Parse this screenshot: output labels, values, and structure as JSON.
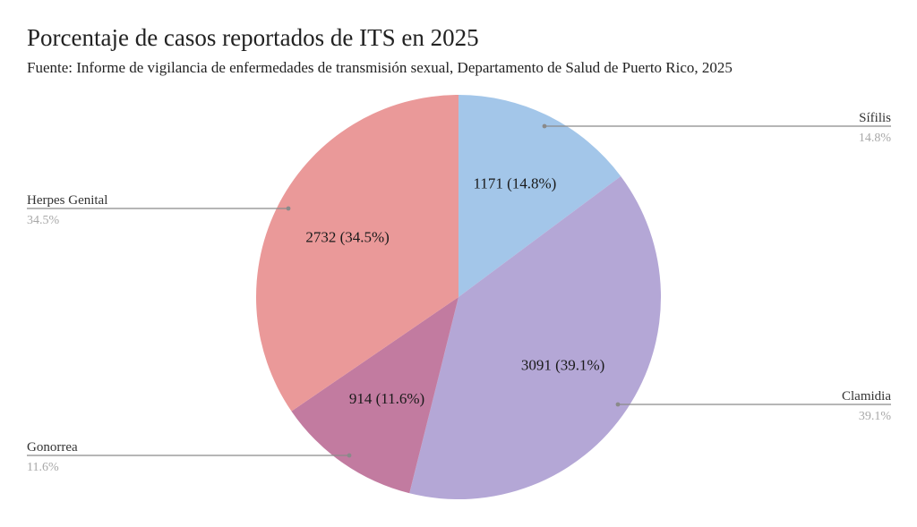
{
  "title": "Porcentaje de casos reportados de ITS en 2025",
  "subtitle": "Fuente: Informe de vigilancia de enfermedades de transmisión sexual, Departamento de Salud de Puerto Rico, 2025",
  "chart_data": {
    "type": "pie",
    "title": "Porcentaje de casos reportados de ITS en 2025",
    "start": "12 o'clock",
    "direction": "clockwise",
    "slices": [
      {
        "name": "Sífilis",
        "value": 1171,
        "percent_label": "14.8%",
        "inner_label": "1171 (14.8%)",
        "color": "#a3c6e9",
        "legend_side": "right"
      },
      {
        "name": "Clamidia",
        "value": 3091,
        "percent_label": "39.1%",
        "inner_label": "3091 (39.1%)",
        "color": "#b4a7d6",
        "legend_side": "right"
      },
      {
        "name": "Gonorrea",
        "value": 914,
        "percent_label": "11.6%",
        "inner_label": "914 (11.6%)",
        "color": "#c27ba0",
        "legend_side": "left"
      },
      {
        "name": "Herpes Genital",
        "value": 2732,
        "percent_label": "34.5%",
        "inner_label": "2732 (34.5%)",
        "color": "#ea9999",
        "legend_side": "left"
      }
    ]
  }
}
